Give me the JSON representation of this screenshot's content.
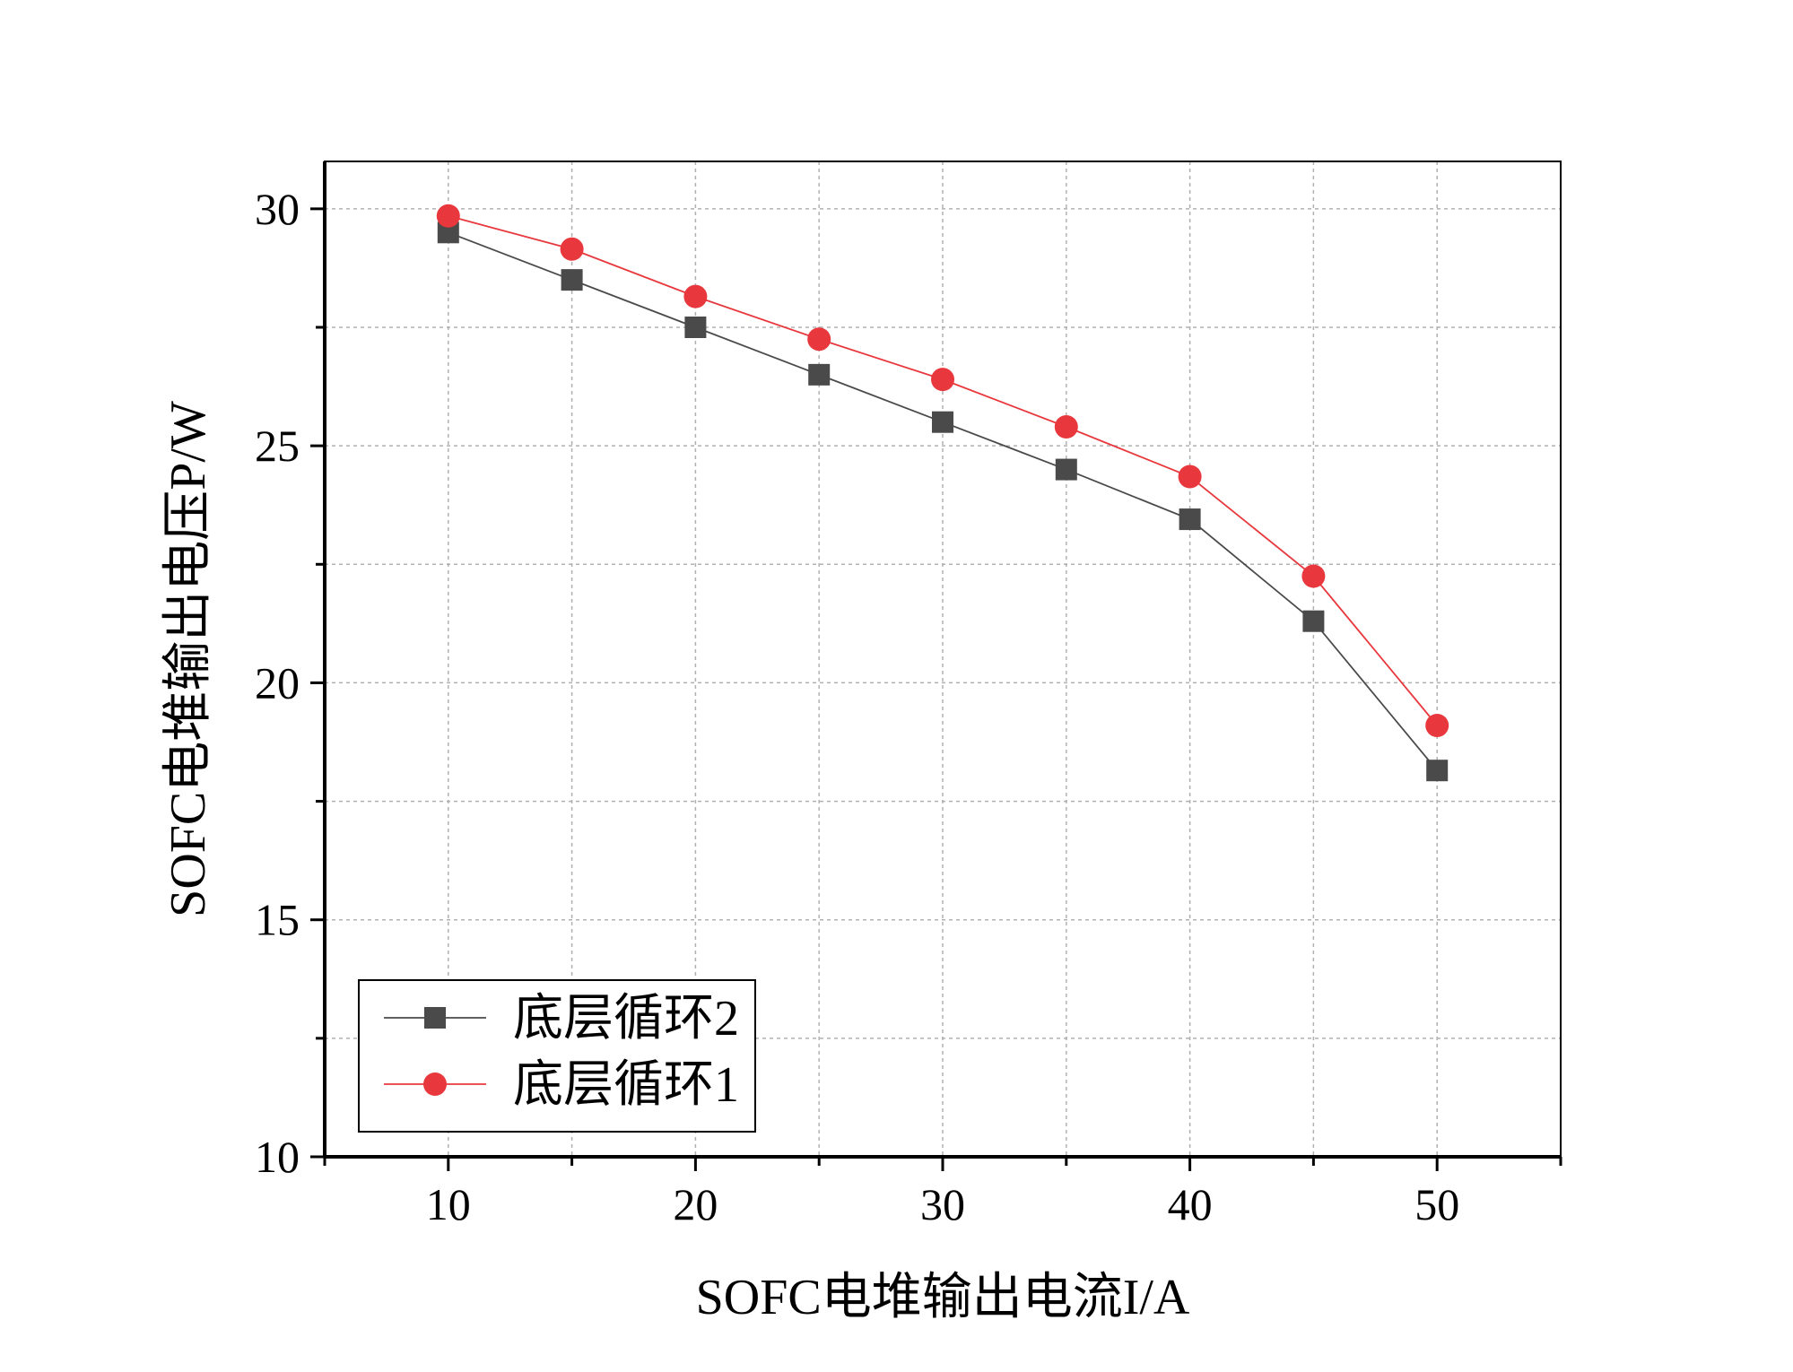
{
  "chart_data": {
    "type": "line",
    "xlabel": "SOFC电堆输出电流I/A",
    "ylabel": "SOFC电堆输出电压P/W",
    "xlim": [
      5,
      55
    ],
    "ylim": [
      10,
      31
    ],
    "x_ticks": [
      10,
      20,
      30,
      40,
      50
    ],
    "y_ticks": [
      10,
      15,
      20,
      25,
      30
    ],
    "x_tick_labels": [
      "10",
      "20",
      "30",
      "40",
      "50"
    ],
    "y_tick_labels": [
      "10",
      "15",
      "20",
      "25",
      "30"
    ],
    "grid": true,
    "legend_position": "bottom-left",
    "x": [
      10,
      15,
      20,
      25,
      30,
      35,
      40,
      45,
      50
    ],
    "series": [
      {
        "name": "底层循环2",
        "marker": "square",
        "color": "#4a4a4a",
        "values": [
          29.5,
          28.5,
          27.5,
          26.5,
          25.5,
          24.5,
          23.45,
          21.3,
          18.15
        ]
      },
      {
        "name": "底层循环1",
        "marker": "circle",
        "color": "#e8383d",
        "values": [
          29.85,
          29.15,
          28.15,
          27.25,
          26.4,
          25.4,
          24.35,
          22.25,
          19.1
        ]
      }
    ]
  }
}
